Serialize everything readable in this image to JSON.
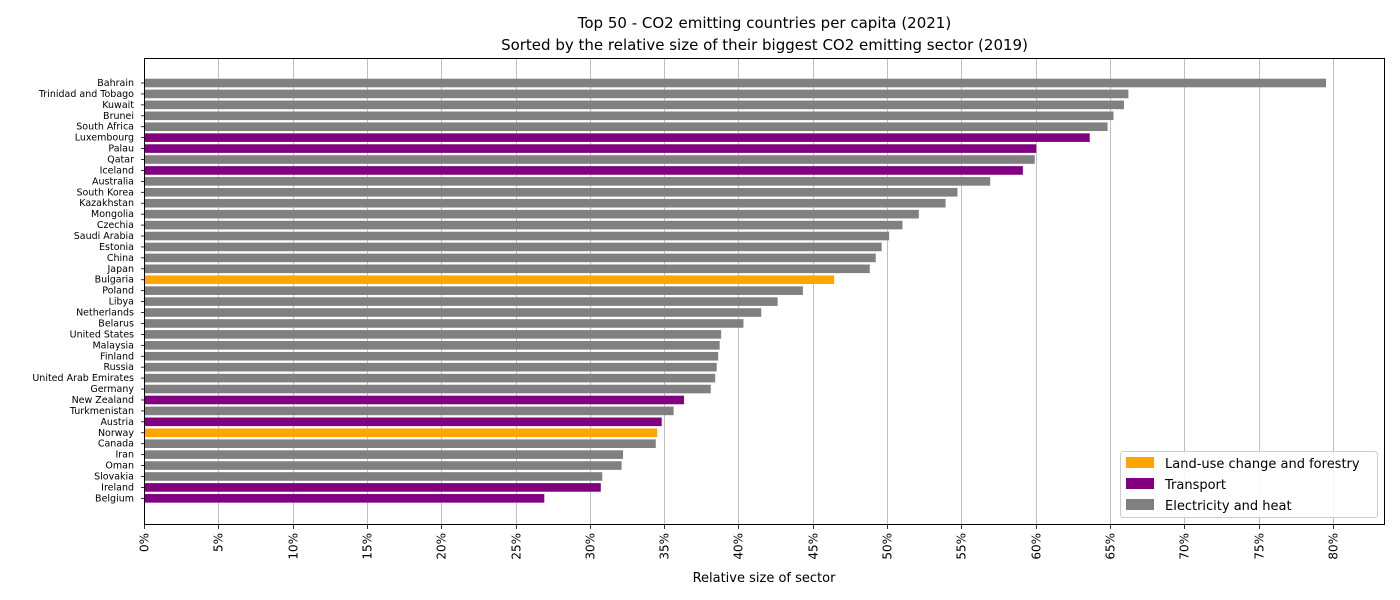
{
  "chart_data": {
    "type": "bar",
    "orientation": "horizontal",
    "title": "Top 50 - CO2 emitting countries per capita (2021)",
    "subtitle": "Sorted by the relative size of their biggest CO2 emitting sector (2019)",
    "xlabel": "Relative size of sector",
    "ylabel": "",
    "xlim": [
      0,
      83.5
    ],
    "xticks": [
      0,
      5,
      10,
      15,
      20,
      25,
      30,
      35,
      40,
      45,
      50,
      55,
      60,
      65,
      70,
      75,
      80
    ],
    "xtick_suffix": "%",
    "grid": "x",
    "legend_position": "lower right",
    "legend": [
      {
        "name": "Land-use change and forestry",
        "color": "#ffa500"
      },
      {
        "name": "Transport",
        "color": "#800080"
      },
      {
        "name": "Electricity and heat",
        "color": "#808080"
      }
    ],
    "bars": [
      {
        "country": "Bahrain",
        "value": 79.5,
        "sector": 2
      },
      {
        "country": "Trinidad and Tobago",
        "value": 66.2,
        "sector": 2
      },
      {
        "country": "Kuwait",
        "value": 65.9,
        "sector": 2
      },
      {
        "country": "Brunei",
        "value": 65.2,
        "sector": 2
      },
      {
        "country": "South Africa",
        "value": 64.8,
        "sector": 2
      },
      {
        "country": "Luxembourg",
        "value": 63.6,
        "sector": 1
      },
      {
        "country": "Palau",
        "value": 60.0,
        "sector": 1
      },
      {
        "country": "Qatar",
        "value": 59.9,
        "sector": 2
      },
      {
        "country": "Iceland",
        "value": 59.1,
        "sector": 1
      },
      {
        "country": "Australia",
        "value": 56.9,
        "sector": 2
      },
      {
        "country": "South Korea",
        "value": 54.7,
        "sector": 2
      },
      {
        "country": "Kazakhstan",
        "value": 53.9,
        "sector": 2
      },
      {
        "country": "Mongolia",
        "value": 52.1,
        "sector": 2
      },
      {
        "country": "Czechia",
        "value": 51.0,
        "sector": 2
      },
      {
        "country": "Saudi Arabia",
        "value": 50.1,
        "sector": 2
      },
      {
        "country": "Estonia",
        "value": 49.6,
        "sector": 2
      },
      {
        "country": "China",
        "value": 49.2,
        "sector": 2
      },
      {
        "country": "Japan",
        "value": 48.8,
        "sector": 2
      },
      {
        "country": "Bulgaria",
        "value": 46.4,
        "sector": 0
      },
      {
        "country": "Poland",
        "value": 44.3,
        "sector": 2
      },
      {
        "country": "Libya",
        "value": 42.6,
        "sector": 2
      },
      {
        "country": "Netherlands",
        "value": 41.5,
        "sector": 2
      },
      {
        "country": "Belarus",
        "value": 40.3,
        "sector": 2
      },
      {
        "country": "United States",
        "value": 38.8,
        "sector": 2
      },
      {
        "country": "Malaysia",
        "value": 38.7,
        "sector": 2
      },
      {
        "country": "Finland",
        "value": 38.6,
        "sector": 2
      },
      {
        "country": "Russia",
        "value": 38.5,
        "sector": 2
      },
      {
        "country": "United Arab Emirates",
        "value": 38.4,
        "sector": 2
      },
      {
        "country": "Germany",
        "value": 38.1,
        "sector": 2
      },
      {
        "country": "New Zealand",
        "value": 36.3,
        "sector": 1
      },
      {
        "country": "Turkmenistan",
        "value": 35.6,
        "sector": 2
      },
      {
        "country": "Austria",
        "value": 34.8,
        "sector": 1
      },
      {
        "country": "Norway",
        "value": 34.5,
        "sector": 0
      },
      {
        "country": "Canada",
        "value": 34.4,
        "sector": 2
      },
      {
        "country": "Iran",
        "value": 32.2,
        "sector": 2
      },
      {
        "country": "Oman",
        "value": 32.1,
        "sector": 2
      },
      {
        "country": "Slovakia",
        "value": 30.8,
        "sector": 2
      },
      {
        "country": "Ireland",
        "value": 30.7,
        "sector": 1
      },
      {
        "country": "Belgium",
        "value": 26.9,
        "sector": 1
      }
    ]
  }
}
